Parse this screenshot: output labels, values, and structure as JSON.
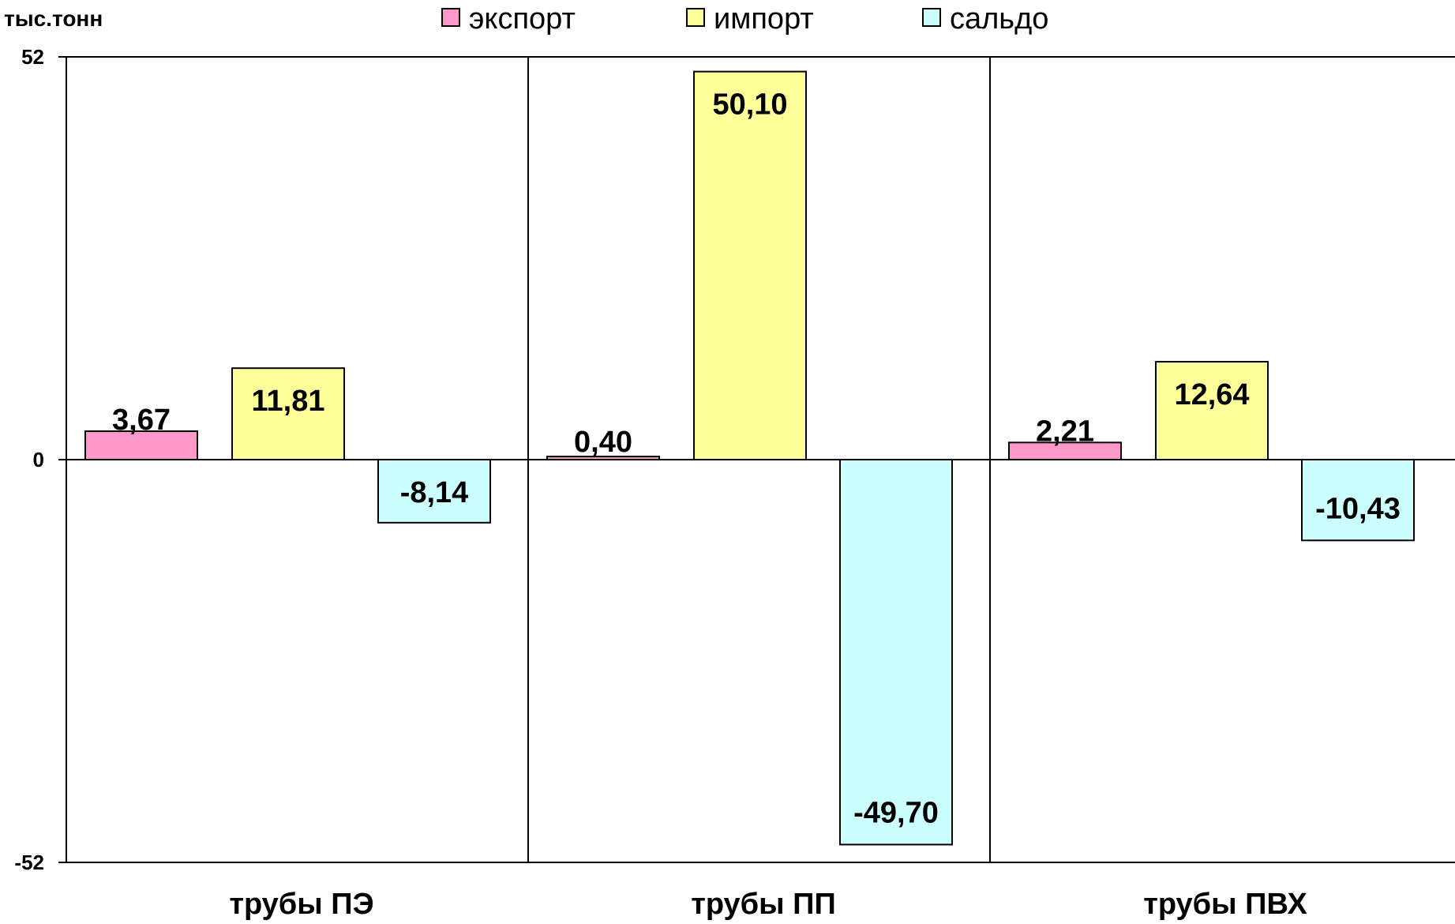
{
  "chart_data": {
    "type": "bar",
    "unit_label": "тыс.тонн",
    "categories": [
      "трубы ПЭ",
      "трубы ПП",
      "трубы ПВХ"
    ],
    "series": [
      {
        "name": "экспорт",
        "color": "#ff99cc",
        "values": [
          3.67,
          0.4,
          2.21
        ],
        "labels": [
          "3,67",
          "0,40",
          "2,21"
        ]
      },
      {
        "name": "импорт",
        "color": "#ffff99",
        "values": [
          11.81,
          50.1,
          12.64
        ],
        "labels": [
          "11,81",
          "50,10",
          "12,64"
        ]
      },
      {
        "name": "сальдо",
        "color": "#ccffff",
        "values": [
          -8.14,
          -49.7,
          -10.43
        ],
        "labels": [
          "-8,14",
          "-49,70",
          "-10,43"
        ]
      }
    ],
    "ylim": [
      -52,
      52
    ],
    "yticks": [
      "52",
      "0",
      "-52"
    ],
    "legend": "top",
    "grid": false
  }
}
